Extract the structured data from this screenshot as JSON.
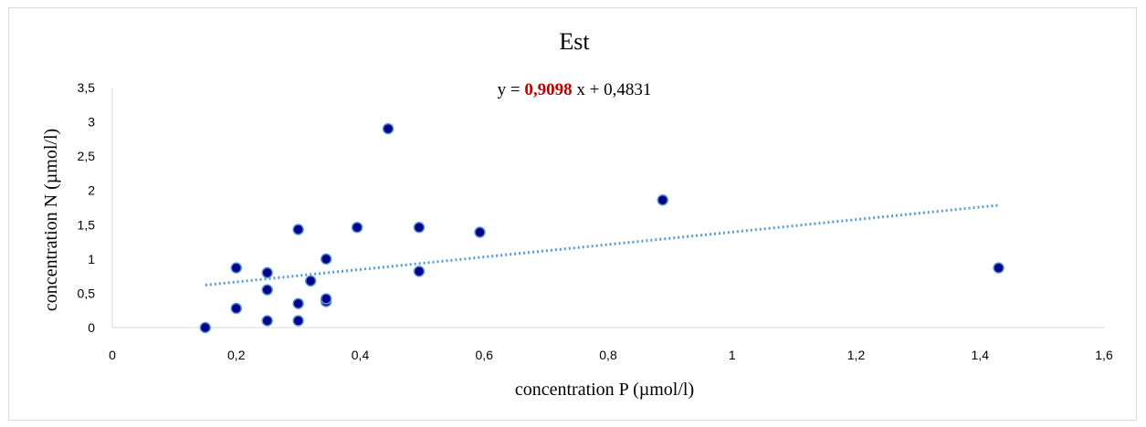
{
  "chart_data": {
    "type": "scatter",
    "title": "Est",
    "xlabel": "concentration P (µmol/l)",
    "ylabel": "concentration N (µmol/l)",
    "xlim": [
      0,
      1.6
    ],
    "ylim": [
      0,
      3.5
    ],
    "x_ticks": [
      "0",
      "0,2",
      "0,4",
      "0,6",
      "0,8",
      "1",
      "1,2",
      "1,4",
      "1,6"
    ],
    "y_ticks": [
      "0",
      "0,5",
      "1",
      "1,5",
      "2",
      "2,5",
      "3",
      "3,5"
    ],
    "equation": {
      "prefix": "y = ",
      "slope": "0,9098",
      "suffix": " x + 0,4831"
    },
    "trendline": {
      "style": "dotted",
      "slope": 0.9098,
      "intercept": 0.4831,
      "x_range": [
        0.15,
        1.43
      ],
      "color": "#5b9bd5"
    },
    "series": [
      {
        "marker_color": "#00008b",
        "marker_edge": "#5b9bd5",
        "points": [
          [
            0.15,
            0.0
          ],
          [
            0.2,
            0.28
          ],
          [
            0.2,
            0.87
          ],
          [
            0.25,
            0.1
          ],
          [
            0.25,
            0.55
          ],
          [
            0.25,
            0.8
          ],
          [
            0.3,
            0.1
          ],
          [
            0.3,
            0.35
          ],
          [
            0.3,
            1.43
          ],
          [
            0.32,
            0.68
          ],
          [
            0.345,
            0.38
          ],
          [
            0.345,
            0.42
          ],
          [
            0.345,
            1.0
          ],
          [
            0.395,
            1.46
          ],
          [
            0.445,
            2.9
          ],
          [
            0.495,
            0.82
          ],
          [
            0.495,
            1.46
          ],
          [
            0.593,
            1.39
          ],
          [
            0.888,
            1.86
          ],
          [
            1.43,
            0.87
          ]
        ]
      }
    ],
    "grid": false,
    "legend": "none"
  }
}
